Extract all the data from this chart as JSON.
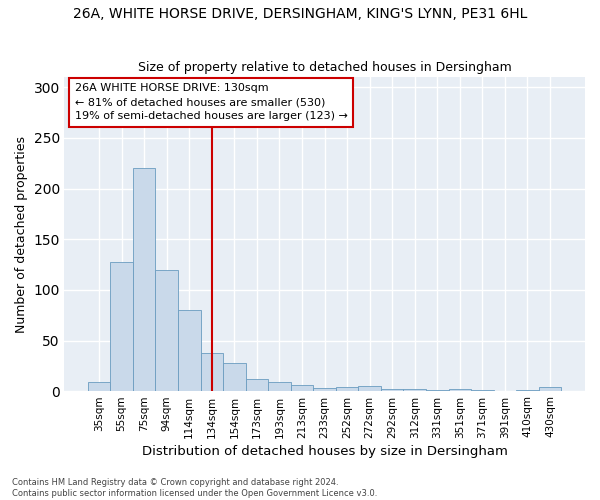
{
  "title1": "26A, WHITE HORSE DRIVE, DERSINGHAM, KING'S LYNN, PE31 6HL",
  "title2": "Size of property relative to detached houses in Dersingham",
  "xlabel": "Distribution of detached houses by size in Dersingham",
  "ylabel": "Number of detached properties",
  "categories": [
    "35sqm",
    "55sqm",
    "75sqm",
    "94sqm",
    "114sqm",
    "134sqm",
    "154sqm",
    "173sqm",
    "193sqm",
    "213sqm",
    "233sqm",
    "252sqm",
    "272sqm",
    "292sqm",
    "312sqm",
    "331sqm",
    "351sqm",
    "371sqm",
    "391sqm",
    "410sqm",
    "430sqm"
  ],
  "values": [
    9,
    128,
    220,
    120,
    80,
    38,
    28,
    12,
    9,
    6,
    3,
    4,
    5,
    2,
    2,
    1,
    2,
    1,
    0,
    1,
    4
  ],
  "bar_color": "#c9d9ea",
  "bar_edge_color": "#6a9cc0",
  "vline_x": 5.0,
  "vline_color": "#cc0000",
  "annotation_text": "26A WHITE HORSE DRIVE: 130sqm\n← 81% of detached houses are smaller (530)\n19% of semi-detached houses are larger (123) →",
  "annotation_box_color": "white",
  "annotation_box_edge": "#cc0000",
  "footnote": "Contains HM Land Registry data © Crown copyright and database right 2024.\nContains public sector information licensed under the Open Government Licence v3.0.",
  "ylim": [
    0,
    310
  ],
  "yticks": [
    0,
    50,
    100,
    150,
    200,
    250,
    300
  ],
  "background_color": "#e8eef5",
  "grid_color": "white"
}
